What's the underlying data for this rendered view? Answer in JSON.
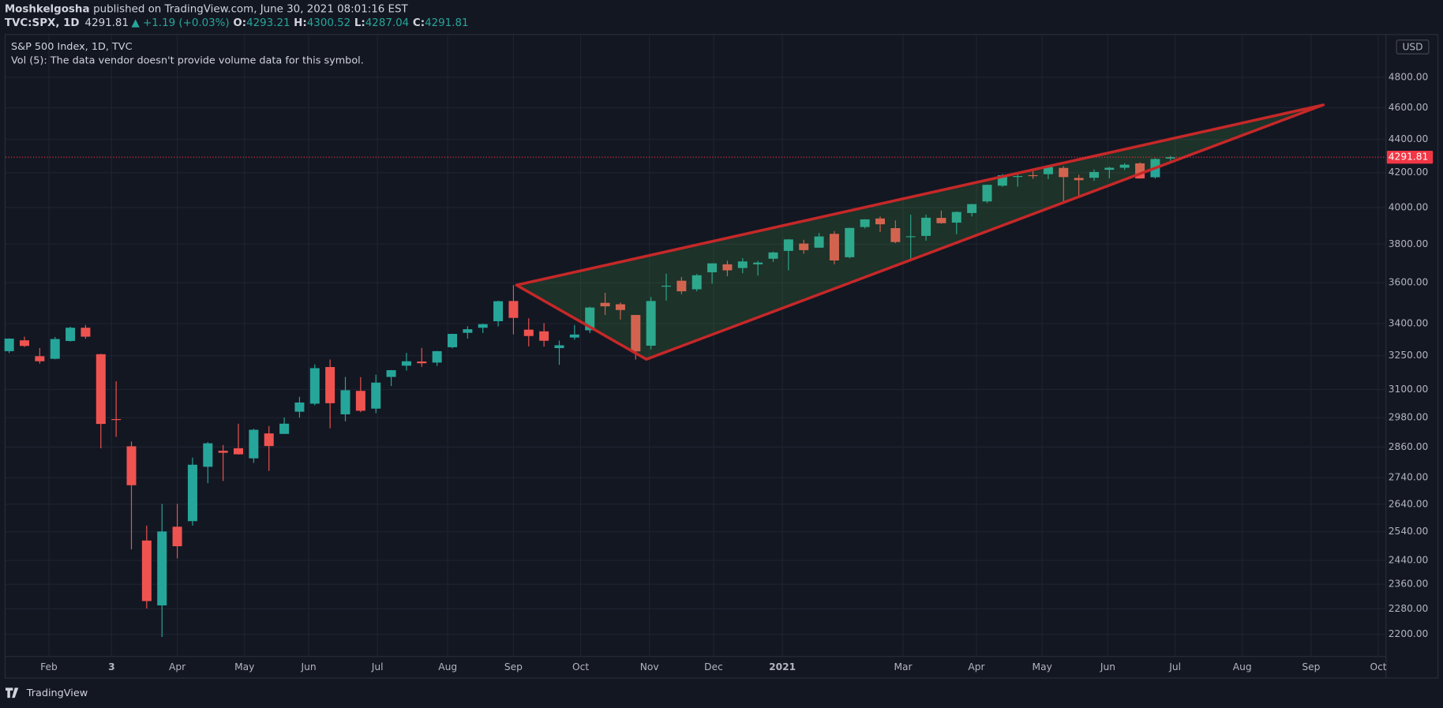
{
  "header": {
    "author": "Moshkelgosha",
    "published": "published on TradingView.com, June 30, 2021 08:01:16 EST"
  },
  "symbol_bar": {
    "symbol": "TVC:SPX, 1D",
    "last": 4291.81,
    "change": "▲ +1.19 (+0.03%)",
    "open_label": "O:",
    "open": 4293.21,
    "high_label": "H:",
    "high": 4300.52,
    "low_label": "L:",
    "low": 4287.04,
    "close_label": "C:",
    "close": 4291.81
  },
  "chart_data": {
    "type": "candlestick",
    "title": "S&P 500 Index, 1D, TVC",
    "subtitle": "Vol (5): The data vendor doesn't provide volume data for this symbol.",
    "currency": "USD",
    "log_scale": true,
    "grid": true,
    "up_color": "#26a69a",
    "down_color": "#ef5350",
    "ohlc": [
      [
        3271,
        3330,
        3262,
        3329
      ],
      [
        3321,
        3338,
        3290,
        3295
      ],
      [
        3248,
        3285,
        3214,
        3225
      ],
      [
        3236,
        3337,
        3234,
        3327
      ],
      [
        3318,
        3385,
        3315,
        3380
      ],
      [
        3380,
        3393,
        3328,
        3338
      ],
      [
        3257,
        3259,
        2855,
        2954
      ],
      [
        2974,
        3136,
        2901,
        2972
      ],
      [
        2863,
        2882,
        2478,
        2711
      ],
      [
        2509,
        2562,
        2281,
        2305
      ],
      [
        2291,
        2641,
        2192,
        2541
      ],
      [
        2558,
        2641,
        2447,
        2489
      ],
      [
        2578,
        2818,
        2562,
        2790
      ],
      [
        2782,
        2880,
        2719,
        2875
      ],
      [
        2845,
        2868,
        2727,
        2837
      ],
      [
        2855,
        2955,
        2830,
        2831
      ],
      [
        2815,
        2934,
        2797,
        2930
      ],
      [
        2915,
        2945,
        2766,
        2864
      ],
      [
        2913,
        2981,
        2913,
        2955
      ],
      [
        3005,
        3068,
        2980,
        3044
      ],
      [
        3039,
        3211,
        3032,
        3194
      ],
      [
        3199,
        3233,
        2936,
        3041
      ],
      [
        2994,
        3155,
        2965,
        3097
      ],
      [
        3094,
        3154,
        3003,
        3009
      ],
      [
        3018,
        3165,
        2999,
        3130
      ],
      [
        3155,
        3186,
        3115,
        3185
      ],
      [
        3205,
        3263,
        3183,
        3225
      ],
      [
        3224,
        3286,
        3200,
        3216
      ],
      [
        3219,
        3272,
        3204,
        3271
      ],
      [
        3289,
        3352,
        3284,
        3351
      ],
      [
        3356,
        3387,
        3329,
        3373
      ],
      [
        3380,
        3399,
        3355,
        3397
      ],
      [
        3411,
        3510,
        3386,
        3508
      ],
      [
        3509,
        3588,
        3349,
        3427
      ],
      [
        3371,
        3425,
        3293,
        3341
      ],
      [
        3363,
        3402,
        3292,
        3319
      ],
      [
        3285,
        3320,
        3209,
        3298
      ],
      [
        3334,
        3393,
        3324,
        3348
      ],
      [
        3368,
        3481,
        3355,
        3477
      ],
      [
        3500,
        3550,
        3441,
        3483
      ],
      [
        3493,
        3502,
        3419,
        3465
      ],
      [
        3441,
        3441,
        3233,
        3270
      ],
      [
        3296,
        3529,
        3279,
        3509
      ],
      [
        3584,
        3646,
        3511,
        3585
      ],
      [
        3610,
        3629,
        3543,
        3557
      ],
      [
        3567,
        3644,
        3557,
        3638
      ],
      [
        3653,
        3699,
        3595,
        3699
      ],
      [
        3694,
        3713,
        3633,
        3663
      ],
      [
        3675,
        3726,
        3648,
        3709
      ],
      [
        3694,
        3712,
        3636,
        3703
      ],
      [
        3723,
        3760,
        3706,
        3756
      ],
      [
        3764,
        3827,
        3663,
        3825
      ],
      [
        3803,
        3823,
        3749,
        3768
      ],
      [
        3781,
        3860,
        3781,
        3841
      ],
      [
        3855,
        3870,
        3694,
        3714
      ],
      [
        3731,
        3888,
        3725,
        3887
      ],
      [
        3892,
        3935,
        3884,
        3934
      ],
      [
        3939,
        3950,
        3865,
        3907
      ],
      [
        3886,
        3928,
        3805,
        3811
      ],
      [
        3842,
        3960,
        3723,
        3842
      ],
      [
        3844,
        3960,
        3818,
        3943
      ],
      [
        3942,
        3983,
        3910,
        3913
      ],
      [
        3916,
        3978,
        3853,
        3975
      ],
      [
        3969,
        4020,
        3950,
        4019
      ],
      [
        4034,
        4130,
        4025,
        4129
      ],
      [
        4124,
        4192,
        4117,
        4185
      ],
      [
        4179,
        4195,
        4118,
        4180
      ],
      [
        4185,
        4219,
        4164,
        4181
      ],
      [
        4191,
        4238,
        4162,
        4233
      ],
      [
        4228,
        4238,
        4029,
        4174
      ],
      [
        4169,
        4188,
        4062,
        4156
      ],
      [
        4170,
        4219,
        4152,
        4204
      ],
      [
        4217,
        4234,
        4167,
        4229
      ],
      [
        4229,
        4256,
        4215,
        4247
      ],
      [
        4255,
        4262,
        4165,
        4166
      ],
      [
        4173,
        4286,
        4165,
        4281
      ],
      [
        4284,
        4300,
        4271,
        4292
      ]
    ],
    "xlim": [
      -0.24,
      90.1
    ],
    "xticks": [
      {
        "value": 2.6,
        "label": "Feb"
      },
      {
        "value": 6.7,
        "label": "3"
      },
      {
        "value": 11.0,
        "label": "Apr"
      },
      {
        "value": 15.4,
        "label": "May"
      },
      {
        "value": 19.6,
        "label": "Jun"
      },
      {
        "value": 24.1,
        "label": "Jul"
      },
      {
        "value": 28.7,
        "label": "Aug"
      },
      {
        "value": 33.0,
        "label": "Sep"
      },
      {
        "value": 37.4,
        "label": "Oct"
      },
      {
        "value": 41.9,
        "label": "Nov"
      },
      {
        "value": 46.1,
        "label": "Dec"
      },
      {
        "value": 50.6,
        "label": "2021"
      },
      {
        "value": 58.5,
        "label": "Mar"
      },
      {
        "value": 63.3,
        "label": "Apr"
      },
      {
        "value": 67.6,
        "label": "May"
      },
      {
        "value": 71.9,
        "label": "Jun"
      },
      {
        "value": 76.3,
        "label": "Jul"
      },
      {
        "value": 80.7,
        "label": "Aug"
      },
      {
        "value": 85.2,
        "label": "Sep"
      },
      {
        "value": 89.6,
        "label": "Oct"
      }
    ],
    "ylim": [
      2133,
      5080
    ],
    "yticks": [
      {
        "value": 2200,
        "label": "2200.00"
      },
      {
        "value": 2280,
        "label": "2280.00"
      },
      {
        "value": 2360,
        "label": "2360.00"
      },
      {
        "value": 2440,
        "label": "2440.00"
      },
      {
        "value": 2540,
        "label": "2540.00"
      },
      {
        "value": 2640,
        "label": "2640.00"
      },
      {
        "value": 2740,
        "label": "2740.00"
      },
      {
        "value": 2860,
        "label": "2860.00"
      },
      {
        "value": 2980,
        "label": "2980.00"
      },
      {
        "value": 3100,
        "label": "3100.00"
      },
      {
        "value": 3250,
        "label": "3250.00"
      },
      {
        "value": 3400,
        "label": "3400.00"
      },
      {
        "value": 3600,
        "label": "3600.00"
      },
      {
        "value": 3800,
        "label": "3800.00"
      },
      {
        "value": 4000,
        "label": "4000.00"
      },
      {
        "value": 4200,
        "label": "4200.00"
      },
      {
        "value": 4400,
        "label": "4400.00"
      },
      {
        "value": 4600,
        "label": "4600.00"
      },
      {
        "value": 4800,
        "label": "4800.00"
      }
    ],
    "last_price": {
      "value": 4291.81,
      "color": "#f23645"
    },
    "pattern": {
      "color": "#c62828",
      "fill": "#4caf50",
      "points": [
        {
          "x": 33.2,
          "y": 3588
        },
        {
          "x": 41.7,
          "y": 3234
        },
        {
          "x": 86.0,
          "y": 4618
        }
      ]
    }
  },
  "footer": {
    "brand": "TradingView"
  }
}
